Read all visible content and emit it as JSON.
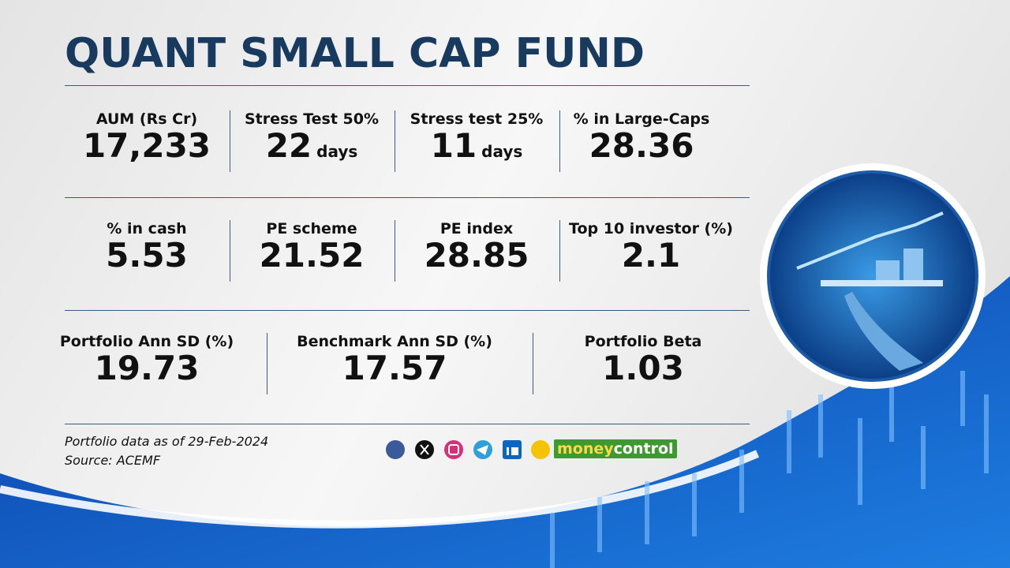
{
  "title": "QUANT SMALL CAP FUND",
  "rows": [
    [
      {
        "label": "AUM (Rs Cr)",
        "value": "17,233"
      },
      {
        "label": "Stress Test 50%",
        "value": "22",
        "unit": "days"
      },
      {
        "label": "Stress test 25%",
        "value": "11",
        "unit": "days"
      },
      {
        "label": "% in Large-Caps",
        "value": "28.36"
      }
    ],
    [
      {
        "label": "% in cash",
        "value": "5.53"
      },
      {
        "label": "PE scheme",
        "value": "21.52"
      },
      {
        "label": "PE index",
        "value": "28.85"
      },
      {
        "label": "Top 10 investor (%)",
        "value": "2.1"
      }
    ],
    [
      {
        "label": "Portfolio Ann SD (%)",
        "value": "19.73"
      },
      {
        "label": "Benchmark Ann SD (%)",
        "value": "17.57"
      },
      {
        "label": "Portfolio Beta",
        "value": "1.03"
      }
    ]
  ],
  "footer": {
    "note": "Portfolio data as of 29-Feb-2024",
    "source": "Source: ACEMF"
  },
  "brand": {
    "part1": "money",
    "part2": "control"
  }
}
